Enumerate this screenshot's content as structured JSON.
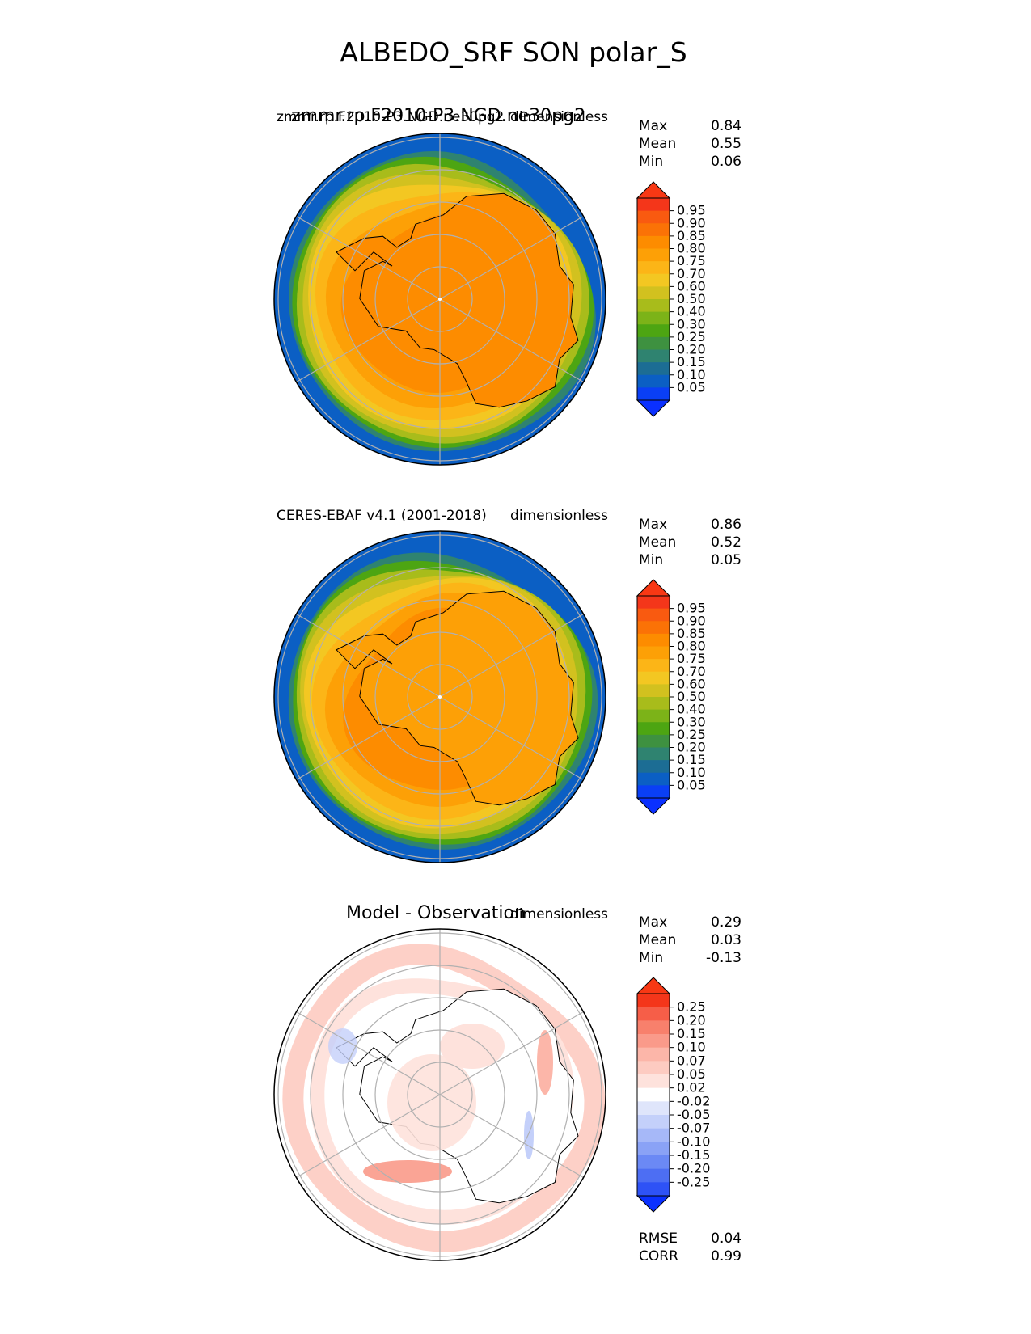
{
  "figure_title": "ALBEDO_SRF SON polar_S",
  "colors": {
    "ocean": "#0b5fc4",
    "land_outline": "#000000",
    "grid": "#b0b0b0"
  },
  "chart_data": [
    {
      "type": "heatmap",
      "projection": "south-polar-stereographic",
      "title_left": "zmmr.rp.F2010-P3.NGD.ne30pg2",
      "title_left_overlap": "zmmr.rp.F2010-P3.NGD.ne30pg2",
      "title_right": "dimensionless",
      "stats": [
        {
          "label": "Max",
          "value": "0.84"
        },
        {
          "label": "Mean",
          "value": "0.55"
        },
        {
          "label": "Min",
          "value": "0.06"
        }
      ],
      "colorbar": {
        "ticks": [
          "0.95",
          "0.90",
          "0.85",
          "0.80",
          "0.75",
          "0.70",
          "0.60",
          "0.50",
          "0.40",
          "0.30",
          "0.25",
          "0.20",
          "0.15",
          "0.10",
          "0.05"
        ],
        "colors": [
          "#f4361a",
          "#f95a10",
          "#fb7206",
          "#fd8c00",
          "#fda006",
          "#fcb517",
          "#f3c722",
          "#d2c11f",
          "#a8bc1b",
          "#7cb318",
          "#4da512",
          "#3e9140",
          "#2f8370",
          "#1c6d94",
          "#0b5fc4",
          "#0a3ff5"
        ],
        "extend_top": "#f83814",
        "extend_bottom": "#0a30ff"
      },
      "field": {
        "center_level": 0.8,
        "outer_ring_level": 0.05,
        "land_level": 0.82
      }
    },
    {
      "type": "heatmap",
      "projection": "south-polar-stereographic",
      "title_left": "CERES-EBAF v4.1 (2001-2018)",
      "title_right": "dimensionless",
      "stats": [
        {
          "label": "Max",
          "value": "0.86"
        },
        {
          "label": "Mean",
          "value": "0.52"
        },
        {
          "label": "Min",
          "value": "0.05"
        }
      ],
      "colorbar": {
        "ticks": [
          "0.95",
          "0.90",
          "0.85",
          "0.80",
          "0.75",
          "0.70",
          "0.60",
          "0.50",
          "0.40",
          "0.30",
          "0.25",
          "0.20",
          "0.15",
          "0.10",
          "0.05"
        ],
        "colors": [
          "#f4361a",
          "#f95a10",
          "#fb7206",
          "#fd8c00",
          "#fda006",
          "#fcb517",
          "#f3c722",
          "#d2c11f",
          "#a8bc1b",
          "#7cb318",
          "#4da512",
          "#3e9140",
          "#2f8370",
          "#1c6d94",
          "#0b5fc4",
          "#0a3ff5"
        ],
        "extend_top": "#f83814",
        "extend_bottom": "#0a30ff"
      },
      "field": {
        "center_level": 0.78,
        "outer_ring_level": 0.05,
        "land_level": 0.8
      }
    },
    {
      "type": "heatmap",
      "projection": "south-polar-stereographic",
      "title_left": "Model - Observation",
      "title_right": "dimensionless",
      "stats": [
        {
          "label": "Max",
          "value": "0.29"
        },
        {
          "label": "Mean",
          "value": "0.03"
        },
        {
          "label": "Min",
          "value": "-0.13"
        }
      ],
      "colorbar": {
        "ticks": [
          "0.25",
          "0.20",
          "0.15",
          "0.10",
          "0.07",
          "0.05",
          "0.02",
          "-0.02",
          "-0.05",
          "-0.07",
          "-0.10",
          "-0.15",
          "-0.20",
          "-0.25"
        ],
        "colors": [
          "#f4361a",
          "#f65e48",
          "#f8806c",
          "#fa9a8a",
          "#fcb6a9",
          "#fdcbc1",
          "#fee2dc",
          "#ffffff",
          "#dfe5fb",
          "#c4d0fa",
          "#a6b8f8",
          "#8aa2f6",
          "#6b89f5",
          "#4d6ef3",
          "#2e52f6"
        ],
        "extend_top": "#f83814",
        "extend_bottom": "#0a30ff"
      },
      "bottom_stats": [
        {
          "label": "RMSE",
          "value": "0.04"
        },
        {
          "label": "CORR",
          "value": "0.99"
        }
      ]
    }
  ]
}
